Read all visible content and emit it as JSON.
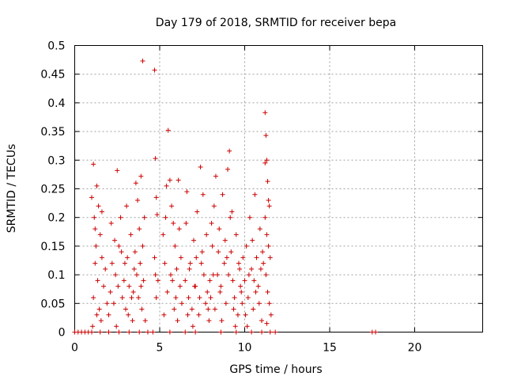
{
  "chart_data": {
    "type": "scatter",
    "title": "Day 179 of 2018, SRMTID for receiver bepa",
    "xlabel": "GPS time / hours",
    "ylabel": "SRMTID / TECUs",
    "xlim": [
      0,
      24
    ],
    "ylim": [
      0,
      0.5
    ],
    "xticks": [
      0,
      5,
      10,
      15,
      20
    ],
    "yticks": [
      0,
      0.05,
      0.1,
      0.15,
      0.2,
      0.25,
      0.3,
      0.35,
      0.4,
      0.45,
      0.5
    ],
    "grid": true,
    "marker": "plus",
    "series": [
      {
        "name": "SRMTID",
        "color": "#cc0000",
        "points": [
          [
            0.0,
            0
          ],
          [
            0.2,
            0
          ],
          [
            0.4,
            0
          ],
          [
            0.6,
            0
          ],
          [
            0.8,
            0
          ],
          [
            1.0,
            0
          ],
          [
            1.5,
            0
          ],
          [
            2.0,
            0
          ],
          [
            2.6,
            0
          ],
          [
            3.2,
            0
          ],
          [
            3.8,
            0
          ],
          [
            4.3,
            0
          ],
          [
            4.6,
            0
          ],
          [
            5.6,
            0
          ],
          [
            6.5,
            0
          ],
          [
            7.1,
            0
          ],
          [
            8.6,
            0
          ],
          [
            9.5,
            0
          ],
          [
            10.4,
            0
          ],
          [
            11.0,
            0
          ],
          [
            11.5,
            0
          ],
          [
            11.8,
            0
          ],
          [
            17.5,
            0
          ],
          [
            17.7,
            0
          ],
          [
            1.0,
            0.235
          ],
          [
            1.1,
            0.293
          ],
          [
            1.15,
            0.2
          ],
          [
            1.3,
            0.255
          ],
          [
            1.25,
            0.15
          ],
          [
            1.4,
            0.22
          ],
          [
            1.2,
            0.12
          ],
          [
            1.35,
            0.09
          ],
          [
            1.5,
            0.17
          ],
          [
            1.1,
            0.06
          ],
          [
            1.3,
            0.03
          ],
          [
            1.45,
            0.04
          ],
          [
            1.6,
            0.13
          ],
          [
            1.7,
            0.08
          ],
          [
            1.8,
            0.11
          ],
          [
            1.2,
            0.18
          ],
          [
            1.6,
            0.21
          ],
          [
            1.9,
            0.05
          ],
          [
            1.05,
            0.01
          ],
          [
            1.55,
            0.02
          ],
          [
            2.0,
            0.03
          ],
          [
            2.1,
            0.07
          ],
          [
            2.2,
            0.12
          ],
          [
            2.3,
            0.05
          ],
          [
            2.4,
            0.1
          ],
          [
            2.5,
            0.282
          ],
          [
            2.6,
            0.15
          ],
          [
            2.7,
            0.2
          ],
          [
            2.8,
            0.06
          ],
          [
            2.9,
            0.09
          ],
          [
            3.0,
            0.04
          ],
          [
            3.1,
            0.13
          ],
          [
            3.2,
            0.08
          ],
          [
            3.3,
            0.17
          ],
          [
            3.4,
            0.02
          ],
          [
            3.5,
            0.11
          ],
          [
            2.15,
            0.19
          ],
          [
            2.45,
            0.01
          ],
          [
            2.75,
            0.14
          ],
          [
            3.05,
            0.22
          ],
          [
            3.35,
            0.06
          ],
          [
            2.35,
            0.16
          ],
          [
            2.55,
            0.08
          ],
          [
            2.95,
            0.12
          ],
          [
            3.15,
            0.03
          ],
          [
            3.45,
            0.07
          ],
          [
            3.6,
            0.26
          ],
          [
            3.7,
            0.23
          ],
          [
            3.8,
            0.18
          ],
          [
            3.9,
            0.272
          ],
          [
            4.0,
            0.15
          ],
          [
            4.1,
            0.2
          ],
          [
            3.65,
            0.1
          ],
          [
            3.75,
            0.06
          ],
          [
            3.85,
            0.12
          ],
          [
            3.95,
            0.04
          ],
          [
            4.05,
            0.09
          ],
          [
            4.15,
            0.02
          ],
          [
            3.55,
            0.14
          ],
          [
            3.9,
            0.08
          ],
          [
            4.0,
            0.473
          ],
          [
            4.7,
            0.457
          ],
          [
            4.75,
            0.303
          ],
          [
            4.8,
            0.235
          ],
          [
            4.85,
            0.205
          ],
          [
            4.7,
            0.13
          ],
          [
            4.9,
            0.09
          ],
          [
            4.8,
            0.06
          ],
          [
            4.75,
            0.1
          ],
          [
            5.2,
            0.17
          ],
          [
            5.3,
            0.12
          ],
          [
            5.4,
            0.255
          ],
          [
            5.5,
            0.352
          ],
          [
            5.6,
            0.265
          ],
          [
            5.7,
            0.22
          ],
          [
            5.8,
            0.19
          ],
          [
            5.9,
            0.15
          ],
          [
            6.0,
            0.11
          ],
          [
            6.1,
            0.265
          ],
          [
            6.2,
            0.08
          ],
          [
            6.3,
            0.05
          ],
          [
            5.25,
            0.03
          ],
          [
            5.45,
            0.07
          ],
          [
            5.65,
            0.1
          ],
          [
            5.85,
            0.04
          ],
          [
            6.05,
            0.02
          ],
          [
            6.25,
            0.13
          ],
          [
            5.35,
            0.2
          ],
          [
            5.75,
            0.09
          ],
          [
            5.95,
            0.06
          ],
          [
            6.15,
            0.18
          ],
          [
            6.5,
            0.09
          ],
          [
            6.6,
            0.245
          ],
          [
            6.7,
            0.06
          ],
          [
            6.8,
            0.12
          ],
          [
            6.9,
            0.04
          ],
          [
            7.0,
            0.16
          ],
          [
            7.1,
            0.08
          ],
          [
            7.2,
            0.21
          ],
          [
            7.3,
            0.03
          ],
          [
            7.4,
            0.288
          ],
          [
            7.5,
            0.14
          ],
          [
            7.6,
            0.1
          ],
          [
            7.7,
            0.05
          ],
          [
            7.8,
            0.07
          ],
          [
            7.9,
            0.02
          ],
          [
            6.55,
            0.19
          ],
          [
            6.75,
            0.11
          ],
          [
            6.95,
            0.01
          ],
          [
            7.15,
            0.13
          ],
          [
            7.35,
            0.06
          ],
          [
            7.55,
            0.24
          ],
          [
            7.75,
            0.17
          ],
          [
            7.95,
            0.09
          ],
          [
            6.65,
            0.03
          ],
          [
            7.05,
            0.08
          ],
          [
            7.45,
            0.12
          ],
          [
            7.85,
            0.04
          ],
          [
            8.0,
            0.06
          ],
          [
            8.1,
            0.15
          ],
          [
            8.2,
            0.22
          ],
          [
            8.3,
            0.272
          ],
          [
            8.4,
            0.1
          ],
          [
            8.5,
            0.18
          ],
          [
            8.6,
            0.08
          ],
          [
            8.7,
            0.24
          ],
          [
            8.8,
            0.12
          ],
          [
            8.9,
            0.05
          ],
          [
            9.0,
            0.284
          ],
          [
            9.1,
            0.316
          ],
          [
            9.15,
            0.2
          ],
          [
            9.2,
            0.14
          ],
          [
            9.3,
            0.09
          ],
          [
            9.4,
            0.06
          ],
          [
            9.5,
            0.17
          ],
          [
            9.6,
            0.03
          ],
          [
            9.7,
            0.11
          ],
          [
            9.8,
            0.07
          ],
          [
            9.9,
            0.13
          ],
          [
            8.05,
            0.19
          ],
          [
            8.25,
            0.04
          ],
          [
            8.45,
            0.14
          ],
          [
            8.65,
            0.02
          ],
          [
            8.85,
            0.16
          ],
          [
            9.05,
            0.1
          ],
          [
            9.25,
            0.21
          ],
          [
            9.45,
            0.01
          ],
          [
            9.65,
            0.12
          ],
          [
            9.85,
            0.05
          ],
          [
            8.15,
            0.1
          ],
          [
            8.55,
            0.07
          ],
          [
            8.95,
            0.13
          ],
          [
            9.35,
            0.04
          ],
          [
            9.75,
            0.08
          ],
          [
            10.0,
            0.09
          ],
          [
            10.1,
            0.15
          ],
          [
            10.2,
            0.06
          ],
          [
            10.3,
            0.2
          ],
          [
            10.4,
            0.11
          ],
          [
            10.5,
            0.04
          ],
          [
            10.6,
            0.24
          ],
          [
            10.7,
            0.13
          ],
          [
            10.8,
            0.08
          ],
          [
            10.9,
            0.18
          ],
          [
            11.0,
            0.02
          ],
          [
            11.1,
            0.12
          ],
          [
            10.05,
            0.03
          ],
          [
            10.25,
            0.1
          ],
          [
            10.45,
            0.16
          ],
          [
            10.65,
            0.07
          ],
          [
            10.85,
            0.05
          ],
          [
            11.05,
            0.14
          ],
          [
            10.15,
            0.01
          ],
          [
            10.55,
            0.09
          ],
          [
            10.95,
            0.11
          ],
          [
            11.2,
            0.383
          ],
          [
            11.25,
            0.343
          ],
          [
            11.3,
            0.3
          ],
          [
            11.35,
            0.263
          ],
          [
            11.4,
            0.23
          ],
          [
            11.45,
            0.22
          ],
          [
            11.2,
            0.2
          ],
          [
            11.3,
            0.17
          ],
          [
            11.4,
            0.15
          ],
          [
            11.5,
            0.13
          ],
          [
            11.25,
            0.1
          ],
          [
            11.35,
            0.07
          ],
          [
            11.45,
            0.05
          ],
          [
            11.55,
            0.03
          ],
          [
            11.3,
            0.015
          ],
          [
            11.2,
            0.295
          ]
        ]
      }
    ]
  }
}
